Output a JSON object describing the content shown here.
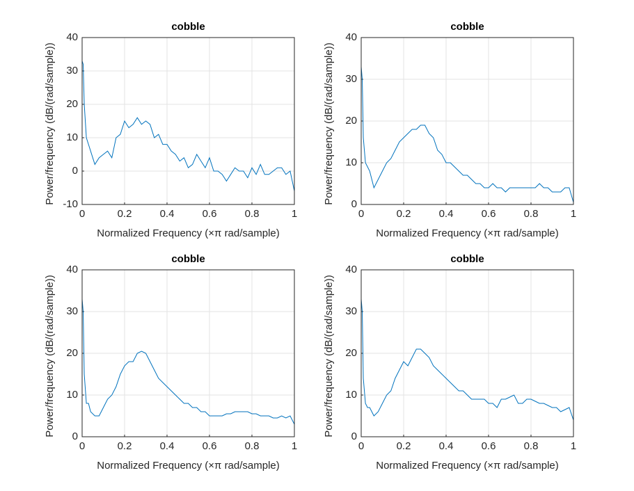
{
  "chart_data": [
    {
      "type": "line",
      "title": "cobble",
      "x_label": "Normalized Frequency  (×π rad/sample)",
      "y_label": "Power/frequency (dB/(rad/sample))",
      "x": [
        0,
        0.005,
        0.01,
        0.02,
        0.03,
        0.04,
        0.06,
        0.08,
        0.1,
        0.12,
        0.14,
        0.16,
        0.18,
        0.2,
        0.22,
        0.24,
        0.26,
        0.28,
        0.3,
        0.32,
        0.34,
        0.36,
        0.38,
        0.4,
        0.42,
        0.44,
        0.46,
        0.48,
        0.5,
        0.52,
        0.54,
        0.56,
        0.58,
        0.6,
        0.62,
        0.64,
        0.66,
        0.68,
        0.7,
        0.72,
        0.74,
        0.76,
        0.78,
        0.8,
        0.82,
        0.84,
        0.86,
        0.88,
        0.9,
        0.92,
        0.94,
        0.96,
        0.98,
        1
      ],
      "series": [
        {
          "color": "#0072bd",
          "values": [
            33,
            32,
            20,
            10,
            8,
            6,
            2,
            4,
            5,
            6,
            4,
            10,
            11,
            15,
            13,
            14,
            16,
            14,
            15,
            14,
            10,
            11,
            8,
            8,
            6,
            5,
            3,
            4,
            1,
            2,
            5,
            3,
            1,
            4,
            0,
            0,
            -1,
            -3,
            -1,
            1,
            0,
            0,
            -2,
            1,
            -1,
            2,
            -1,
            -1,
            0,
            1,
            1,
            -1,
            0,
            -6
          ]
        }
      ],
      "xlim": [
        0,
        1
      ],
      "ylim": [
        -10,
        40
      ],
      "xticks": [
        0,
        0.2,
        0.4,
        0.6,
        0.8,
        1
      ],
      "yticks": [
        -10,
        0,
        10,
        20,
        30,
        40
      ],
      "grid": true
    },
    {
      "type": "line",
      "title": "cobble",
      "x_label": "Normalized Frequency  (×π rad/sample)",
      "y_label": "Power/frequency (dB/(rad/sample))",
      "x": [
        0,
        0.005,
        0.01,
        0.02,
        0.03,
        0.04,
        0.06,
        0.08,
        0.1,
        0.12,
        0.14,
        0.16,
        0.18,
        0.2,
        0.22,
        0.24,
        0.26,
        0.28,
        0.3,
        0.32,
        0.34,
        0.36,
        0.38,
        0.4,
        0.42,
        0.44,
        0.46,
        0.48,
        0.5,
        0.52,
        0.54,
        0.56,
        0.58,
        0.6,
        0.62,
        0.64,
        0.66,
        0.68,
        0.7,
        0.72,
        0.74,
        0.76,
        0.78,
        0.8,
        0.82,
        0.84,
        0.86,
        0.88,
        0.9,
        0.92,
        0.94,
        0.96,
        0.98,
        1
      ],
      "series": [
        {
          "color": "#0072bd",
          "values": [
            33,
            30,
            16,
            10,
            9,
            8,
            4,
            6,
            8,
            10,
            11,
            13,
            15,
            16,
            17,
            18,
            18,
            19,
            19,
            17,
            16,
            13,
            12,
            10,
            10,
            9,
            8,
            7,
            7,
            6,
            5,
            5,
            4,
            4,
            5,
            4,
            4,
            3,
            4,
            4,
            4,
            4,
            4,
            4,
            4,
            5,
            4,
            4,
            3,
            3,
            3,
            4,
            4,
            0.5
          ]
        }
      ],
      "xlim": [
        0,
        1
      ],
      "ylim": [
        0,
        40
      ],
      "xticks": [
        0,
        0.2,
        0.4,
        0.6,
        0.8,
        1
      ],
      "yticks": [
        0,
        10,
        20,
        30,
        40
      ],
      "grid": true
    },
    {
      "type": "line",
      "title": "cobble",
      "x_label": "Normalized Frequency  (×π rad/sample)",
      "y_label": "Power/frequency (dB/(rad/sample))",
      "x": [
        0,
        0.005,
        0.01,
        0.02,
        0.03,
        0.04,
        0.06,
        0.08,
        0.1,
        0.12,
        0.14,
        0.16,
        0.18,
        0.2,
        0.22,
        0.24,
        0.26,
        0.28,
        0.3,
        0.32,
        0.34,
        0.36,
        0.38,
        0.4,
        0.42,
        0.44,
        0.46,
        0.48,
        0.5,
        0.52,
        0.54,
        0.56,
        0.58,
        0.6,
        0.62,
        0.64,
        0.66,
        0.68,
        0.7,
        0.72,
        0.74,
        0.76,
        0.78,
        0.8,
        0.82,
        0.84,
        0.86,
        0.88,
        0.9,
        0.92,
        0.94,
        0.96,
        0.98,
        1
      ],
      "series": [
        {
          "color": "#0072bd",
          "values": [
            33,
            30,
            15,
            8,
            8,
            6,
            5,
            5,
            7,
            9,
            10,
            12,
            15,
            17,
            18,
            18,
            20,
            20.5,
            20,
            18,
            16,
            14,
            13,
            12,
            11,
            10,
            9,
            8,
            8,
            7,
            7,
            6,
            6,
            5,
            5,
            5,
            5,
            5.5,
            5.5,
            6,
            6,
            6,
            6,
            5.5,
            5.5,
            5,
            5,
            5,
            4.5,
            4.5,
            5,
            4.5,
            5,
            3
          ]
        }
      ],
      "xlim": [
        0,
        1
      ],
      "ylim": [
        0,
        40
      ],
      "xticks": [
        0,
        0.2,
        0.4,
        0.6,
        0.8,
        1
      ],
      "yticks": [
        0,
        10,
        20,
        30,
        40
      ],
      "grid": true
    },
    {
      "type": "line",
      "title": "cobble",
      "x_label": "Normalized Frequency  (×π rad/sample)",
      "y_label": "Power/frequency (dB/(rad/sample))",
      "x": [
        0,
        0.005,
        0.01,
        0.02,
        0.03,
        0.04,
        0.06,
        0.08,
        0.1,
        0.12,
        0.14,
        0.16,
        0.18,
        0.2,
        0.22,
        0.24,
        0.26,
        0.28,
        0.3,
        0.32,
        0.34,
        0.36,
        0.38,
        0.4,
        0.42,
        0.44,
        0.46,
        0.48,
        0.5,
        0.52,
        0.54,
        0.56,
        0.58,
        0.6,
        0.62,
        0.64,
        0.66,
        0.68,
        0.7,
        0.72,
        0.74,
        0.76,
        0.78,
        0.8,
        0.82,
        0.84,
        0.86,
        0.88,
        0.9,
        0.92,
        0.94,
        0.96,
        0.98,
        1
      ],
      "series": [
        {
          "color": "#0072bd",
          "values": [
            33,
            30,
            14,
            8,
            7,
            7,
            5,
            6,
            8,
            10,
            11,
            14,
            16,
            18,
            17,
            19,
            21,
            21,
            20,
            19,
            17,
            16,
            15,
            14,
            13,
            12,
            11,
            11,
            10,
            9,
            9,
            9,
            9,
            8,
            8,
            7,
            9,
            9,
            9.5,
            10,
            8,
            8,
            9,
            9,
            8.5,
            8,
            8,
            7.5,
            7,
            7,
            6,
            6.5,
            7,
            4
          ]
        }
      ],
      "xlim": [
        0,
        1
      ],
      "ylim": [
        0,
        40
      ],
      "xticks": [
        0,
        0.2,
        0.4,
        0.6,
        0.8,
        1
      ],
      "yticks": [
        0,
        10,
        20,
        30,
        40
      ],
      "grid": true
    }
  ]
}
